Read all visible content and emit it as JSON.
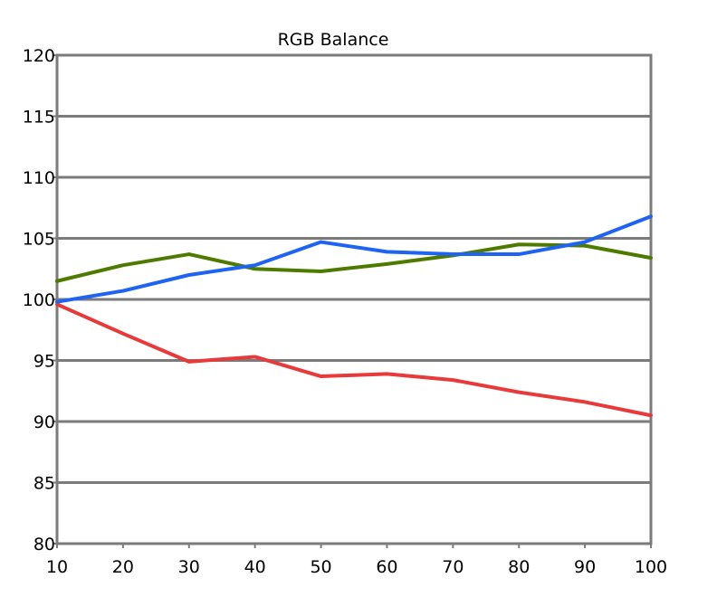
{
  "chart_data": {
    "type": "line",
    "title": "RGB Balance",
    "xlabel": "",
    "ylabel": "",
    "x": [
      10,
      20,
      30,
      40,
      50,
      60,
      70,
      80,
      90,
      100
    ],
    "xlim": [
      10,
      100
    ],
    "ylim": [
      80,
      120
    ],
    "y_ticks": [
      80,
      85,
      90,
      95,
      100,
      105,
      110,
      115,
      120
    ],
    "x_ticks": [
      10,
      20,
      30,
      40,
      50,
      60,
      70,
      80,
      90,
      100
    ],
    "grid": "horizontal",
    "legend": "none",
    "series": [
      {
        "color": "#e83a3a",
        "values": [
          99.6,
          97.2,
          94.9,
          95.3,
          93.7,
          93.9,
          93.4,
          92.4,
          91.6,
          90.5
        ]
      },
      {
        "color": "#4e7a00",
        "values": [
          101.5,
          102.8,
          103.7,
          102.5,
          102.3,
          102.9,
          103.6,
          104.5,
          104.4,
          103.4
        ]
      },
      {
        "color": "#1f63f2",
        "values": [
          99.8,
          100.7,
          102.0,
          102.8,
          104.7,
          103.9,
          103.7,
          103.7,
          104.7,
          106.8
        ]
      }
    ]
  }
}
